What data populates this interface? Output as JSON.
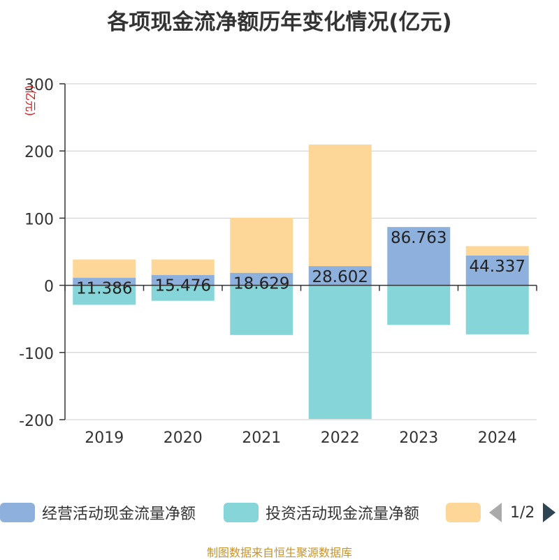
{
  "title": "各项现金流净额历年变化情况(亿元)",
  "source": "制图数据来自恒生聚源数据库",
  "legend": {
    "page_text": "1/2"
  },
  "chart_data": {
    "type": "bar",
    "stacked": true,
    "title": "各项现金流净额历年变化情况(亿元)",
    "ylabel": "(亿元)",
    "xlabel": "",
    "ylim": [
      -200,
      300
    ],
    "yticks": [
      300,
      200,
      100,
      0,
      -100,
      -200
    ],
    "grid": true,
    "categories": [
      "2019",
      "2020",
      "2021",
      "2022",
      "2023",
      "2024"
    ],
    "series": [
      {
        "name": "经营活动现金流量净额",
        "color": "#8eb0dc",
        "values": [
          11.386,
          15.476,
          18.629,
          28.602,
          86.763,
          44.337
        ],
        "labels": [
          "11.386",
          "15.476",
          "18.629",
          "28.602",
          "86.763",
          "44.337"
        ]
      },
      {
        "name": "投资活动现金流量净额",
        "color": "#86d5d8",
        "values": [
          -29,
          -23,
          -74,
          -199,
          -59,
          -73
        ]
      },
      {
        "name": "",
        "color": "#fdd797",
        "values": [
          27,
          23,
          82,
          181,
          0,
          14
        ]
      }
    ]
  }
}
